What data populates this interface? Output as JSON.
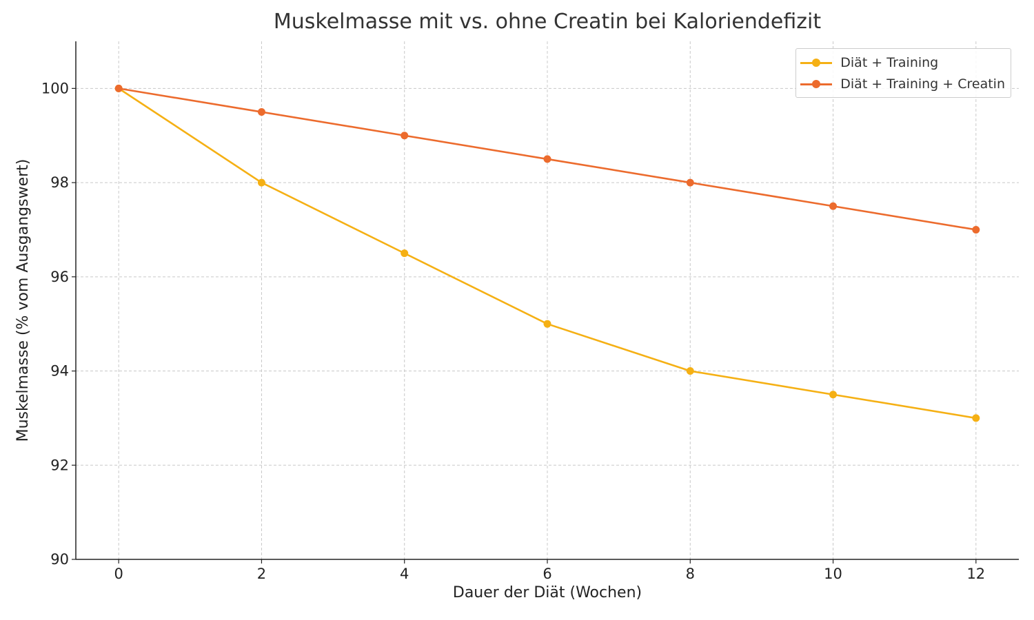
{
  "chart_data": {
    "type": "line",
    "title": "Muskelmasse mit vs. ohne Creatin bei Kaloriendefizit",
    "xlabel": "Dauer der Diät (Wochen)",
    "ylabel": "Muskelmasse (% vom Ausgangswert)",
    "x": [
      0,
      2,
      4,
      6,
      8,
      10,
      12
    ],
    "xticks": [
      0,
      2,
      4,
      6,
      8,
      10,
      12
    ],
    "yticks": [
      90,
      92,
      94,
      96,
      98,
      100
    ],
    "xlim": [
      -0.6,
      12.6
    ],
    "ylim": [
      90,
      101
    ],
    "grid": true,
    "grid_style": "dashed",
    "legend_position": "top-right",
    "series": [
      {
        "name": "Diät + Training",
        "color": "#f5b014",
        "values": [
          100,
          98,
          96.5,
          95,
          94,
          93.5,
          93
        ]
      },
      {
        "name": "Diät + Training + Creatin",
        "color": "#ec6b2d",
        "values": [
          100,
          99.5,
          99,
          98.5,
          98,
          97.5,
          97
        ]
      }
    ]
  }
}
